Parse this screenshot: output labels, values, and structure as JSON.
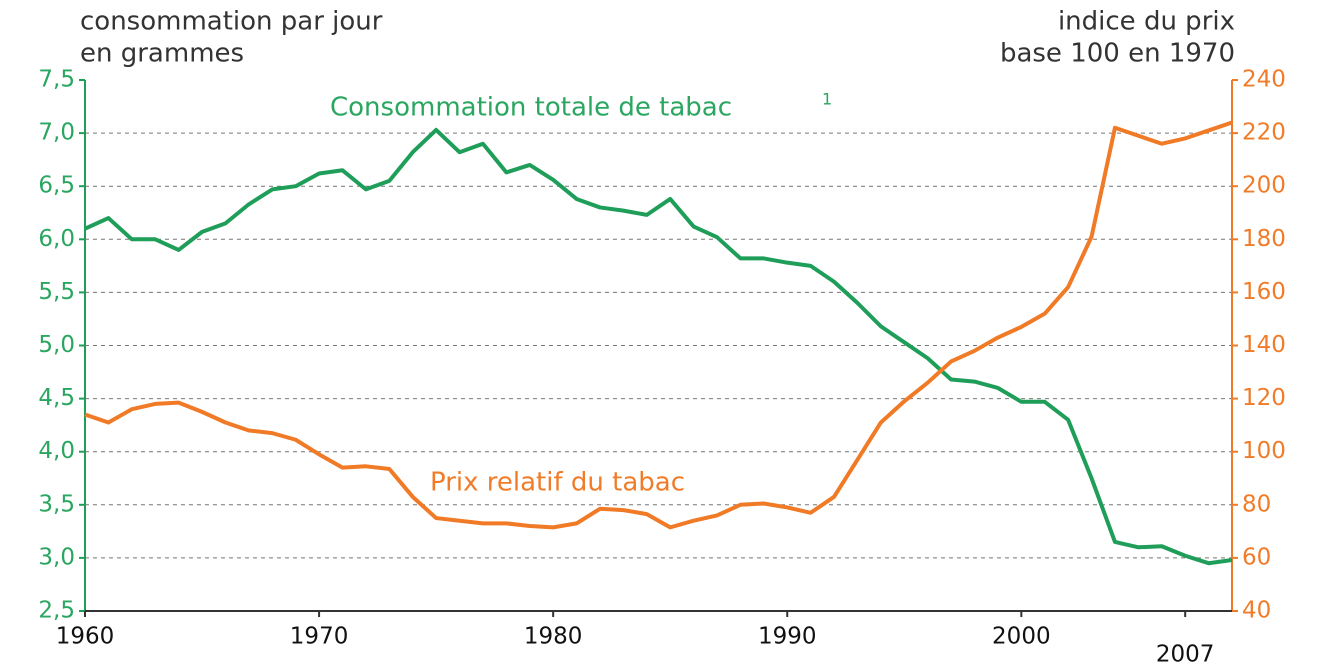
{
  "chart_data": {
    "type": "line",
    "y_label": [
      "consommation par jour",
      "en grammes"
    ],
    "y2_label": [
      "indice du prix",
      "base 100 en 1970"
    ],
    "annotations": [
      {
        "text": "Consommation totale de tabac",
        "sup": "1"
      },
      {
        "text": "Prix relatif du tabac"
      }
    ],
    "x": [
      1960,
      1961,
      1962,
      1963,
      1964,
      1965,
      1966,
      1967,
      1968,
      1969,
      1970,
      1971,
      1972,
      1973,
      1974,
      1975,
      1976,
      1977,
      1978,
      1979,
      1980,
      1981,
      1982,
      1983,
      1984,
      1985,
      1986,
      1987,
      1988,
      1989,
      1990,
      1991,
      1992,
      1993,
      1994,
      1995,
      1996,
      1997,
      1998,
      1999,
      2000,
      2001,
      2002,
      2003,
      2004,
      2005,
      2006,
      2007,
      2008,
      2009
    ],
    "series": [
      {
        "name": "Consommation totale de tabac",
        "color": "#1f9e5a",
        "values": [
          6.1,
          6.2,
          6.0,
          6.0,
          5.9,
          6.07,
          6.15,
          6.33,
          6.47,
          6.5,
          6.62,
          6.65,
          6.47,
          6.55,
          6.82,
          7.03,
          6.82,
          6.9,
          6.63,
          6.7,
          6.56,
          6.38,
          6.3,
          6.27,
          6.23,
          6.38,
          6.12,
          6.02,
          5.82,
          5.82,
          5.78,
          5.75,
          5.6,
          5.4,
          5.18,
          5.03,
          4.88,
          4.68,
          4.66,
          4.6,
          4.47,
          4.47,
          4.3,
          3.75,
          3.15,
          3.1,
          3.11,
          3.02,
          2.95,
          2.98
        ]
      },
      {
        "name": "Prix relatif du tabac",
        "color": "#f07a26",
        "axis": "y2",
        "values": [
          114,
          111,
          116,
          118,
          118.5,
          115,
          111,
          108,
          107,
          104.5,
          99,
          94,
          94.5,
          93.5,
          83,
          75,
          74,
          73,
          73,
          72,
          71.5,
          73,
          78.5,
          78,
          76.5,
          71.5,
          74,
          76,
          80,
          80.5,
          79,
          77,
          83,
          97,
          111,
          119,
          126,
          134,
          138,
          143,
          147,
          152,
          162,
          181,
          222,
          219,
          216,
          218,
          221,
          224
        ]
      }
    ],
    "xlim": [
      1960,
      2009
    ],
    "xticks": [
      1960,
      1970,
      1980,
      1990,
      2000,
      2007
    ],
    "ylim": [
      2.5,
      7.5
    ],
    "yticks": [
      {
        "value": 2.5,
        "label": "2,5"
      },
      {
        "value": 3.0,
        "label": "3,0"
      },
      {
        "value": 3.5,
        "label": "3,5"
      },
      {
        "value": 4.0,
        "label": "4,0"
      },
      {
        "value": 4.5,
        "label": "4,5"
      },
      {
        "value": 5.0,
        "label": "5,0"
      },
      {
        "value": 5.5,
        "label": "5,5"
      },
      {
        "value": 6.0,
        "label": "6,0"
      },
      {
        "value": 6.5,
        "label": "6,5"
      },
      {
        "value": 7.0,
        "label": "7,0"
      },
      {
        "value": 7.5,
        "label": "7,5"
      }
    ],
    "y2lim": [
      40,
      240
    ],
    "y2ticks": [
      40,
      60,
      80,
      100,
      120,
      140,
      160,
      180,
      200,
      220,
      240
    ],
    "grid": true
  }
}
